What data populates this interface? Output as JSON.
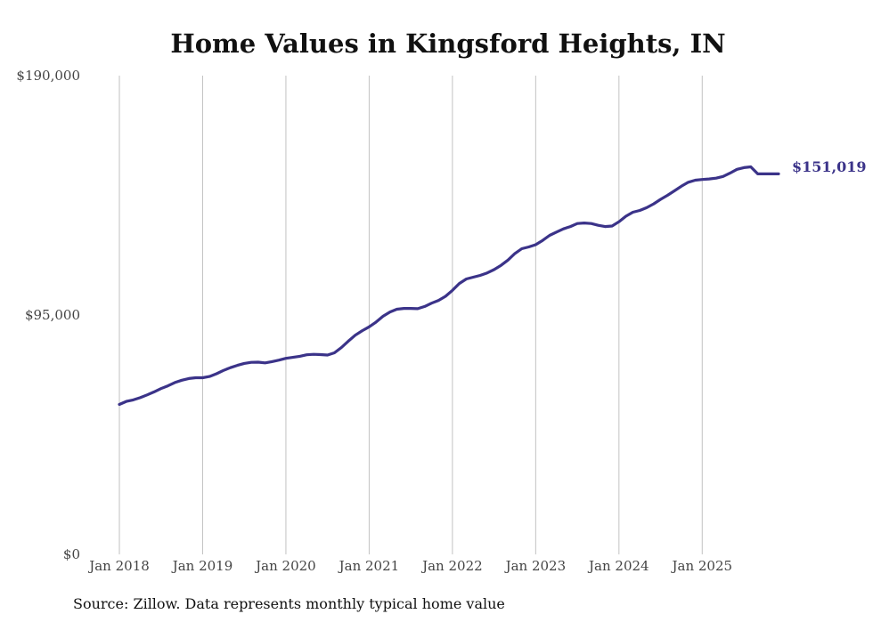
{
  "chart_data": {
    "type": "line",
    "title": "Home Values in Kingsford Heights, IN",
    "xlabel": "",
    "ylabel": "",
    "source": "Source: Zillow. Data represents monthly typical home value",
    "ylim": [
      0,
      190000
    ],
    "y_ticks": [
      {
        "value": 0,
        "label": "$0"
      },
      {
        "value": 95000,
        "label": "$95,000"
      },
      {
        "value": 190000,
        "label": "$190,000"
      }
    ],
    "x_ticks": [
      {
        "value": 2018.0,
        "label": "Jan 2018"
      },
      {
        "value": 2019.0,
        "label": "Jan 2019"
      },
      {
        "value": 2020.0,
        "label": "Jan 2020"
      },
      {
        "value": 2021.0,
        "label": "Jan 2021"
      },
      {
        "value": 2022.0,
        "label": "Jan 2022"
      },
      {
        "value": 2023.0,
        "label": "Jan 2023"
      },
      {
        "value": 2024.0,
        "label": "Jan 2024"
      },
      {
        "value": 2025.0,
        "label": "Jan 2025"
      }
    ],
    "xlim": [
      2018.0,
      2025.917
    ],
    "grid": "vertical",
    "line_color": "#3b3389",
    "end_label": "$151,019",
    "series": [
      {
        "name": "Typical home value",
        "x": [
          2018.0,
          2018.083,
          2018.167,
          2018.25,
          2018.333,
          2018.417,
          2018.5,
          2018.583,
          2018.667,
          2018.75,
          2018.833,
          2018.917,
          2019.0,
          2019.083,
          2019.167,
          2019.25,
          2019.333,
          2019.417,
          2019.5,
          2019.583,
          2019.667,
          2019.75,
          2019.833,
          2019.917,
          2020.0,
          2020.083,
          2020.167,
          2020.25,
          2020.333,
          2020.417,
          2020.5,
          2020.583,
          2020.667,
          2020.75,
          2020.833,
          2020.917,
          2021.0,
          2021.083,
          2021.167,
          2021.25,
          2021.333,
          2021.417,
          2021.5,
          2021.583,
          2021.667,
          2021.75,
          2021.833,
          2021.917,
          2022.0,
          2022.083,
          2022.167,
          2022.25,
          2022.333,
          2022.417,
          2022.5,
          2022.583,
          2022.667,
          2022.75,
          2022.833,
          2022.917,
          2023.0,
          2023.083,
          2023.167,
          2023.25,
          2023.333,
          2023.417,
          2023.5,
          2023.583,
          2023.667,
          2023.75,
          2023.833,
          2023.917,
          2024.0,
          2024.083,
          2024.167,
          2024.25,
          2024.333,
          2024.417,
          2024.5,
          2024.583,
          2024.667,
          2024.75,
          2024.833,
          2024.917,
          2025.0,
          2025.083,
          2025.167,
          2025.25,
          2025.333,
          2025.417,
          2025.5,
          2025.583,
          2025.667,
          2025.75,
          2025.833,
          2025.917
        ],
        "values": [
          59500,
          60700,
          61300,
          62200,
          63300,
          64500,
          65800,
          66900,
          68200,
          69100,
          69800,
          70100,
          70100,
          70600,
          71700,
          73000,
          74100,
          75000,
          75800,
          76200,
          76300,
          76000,
          76500,
          77100,
          77800,
          78200,
          78600,
          79200,
          79400,
          79300,
          79100,
          80000,
          82100,
          84600,
          87000,
          88800,
          90300,
          92200,
          94500,
          96200,
          97300,
          97600,
          97600,
          97500,
          98400,
          99700,
          100800,
          102400,
          104800,
          107500,
          109300,
          110000,
          110700,
          111700,
          113000,
          114700,
          116800,
          119400,
          121300,
          122000,
          122900,
          124600,
          126600,
          127900,
          129200,
          130100,
          131300,
          131500,
          131300,
          130600,
          130100,
          130300,
          132000,
          134200,
          135800,
          136500,
          137600,
          139100,
          140900,
          142500,
          144300,
          146100,
          147700,
          148500,
          148800,
          149000,
          149300,
          150000,
          151300,
          152800,
          153500,
          153800,
          151019,
          151019,
          151019,
          151019
        ]
      }
    ]
  }
}
